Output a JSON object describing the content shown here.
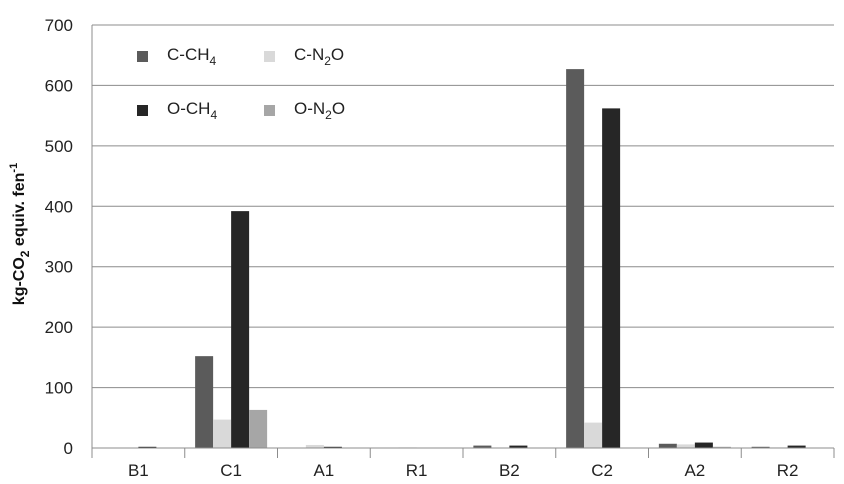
{
  "chart_data": {
    "type": "bar",
    "categories": [
      "B1",
      "C1",
      "A1",
      "R1",
      "B2",
      "C2",
      "A2",
      "R2"
    ],
    "series": [
      {
        "name": "C-CH4",
        "label_main": "C-CH",
        "label_sub": "4",
        "label_tail": "",
        "color": "#5b5b5b",
        "values": [
          0,
          152,
          0,
          0,
          4,
          627,
          7,
          2
        ]
      },
      {
        "name": "C-N2O",
        "label_main": "C-N",
        "label_sub": "2",
        "label_tail": "O",
        "color": "#d9d9d9",
        "values": [
          0,
          47,
          5,
          1,
          0,
          42,
          6,
          1
        ]
      },
      {
        "name": "O-CH4",
        "label_main": "O-CH",
        "label_sub": "4",
        "label_tail": "",
        "color": "#262626",
        "values": [
          2,
          392,
          2,
          0,
          4,
          562,
          9,
          4
        ]
      },
      {
        "name": "O-N2O",
        "label_main": "O-N",
        "label_sub": "2",
        "label_tail": "O",
        "color": "#a6a6a6",
        "values": [
          0,
          63,
          0,
          0,
          0,
          0,
          2,
          0
        ]
      }
    ],
    "ylabel": {
      "main": "kg-CO",
      "sub": "2",
      "mid": " equiv. fen",
      "sup": "-1"
    },
    "ylim": [
      0,
      700
    ],
    "yticks": [
      0,
      100,
      200,
      300,
      400,
      500,
      600,
      700
    ],
    "grid": true,
    "legend_position": "top-left"
  }
}
